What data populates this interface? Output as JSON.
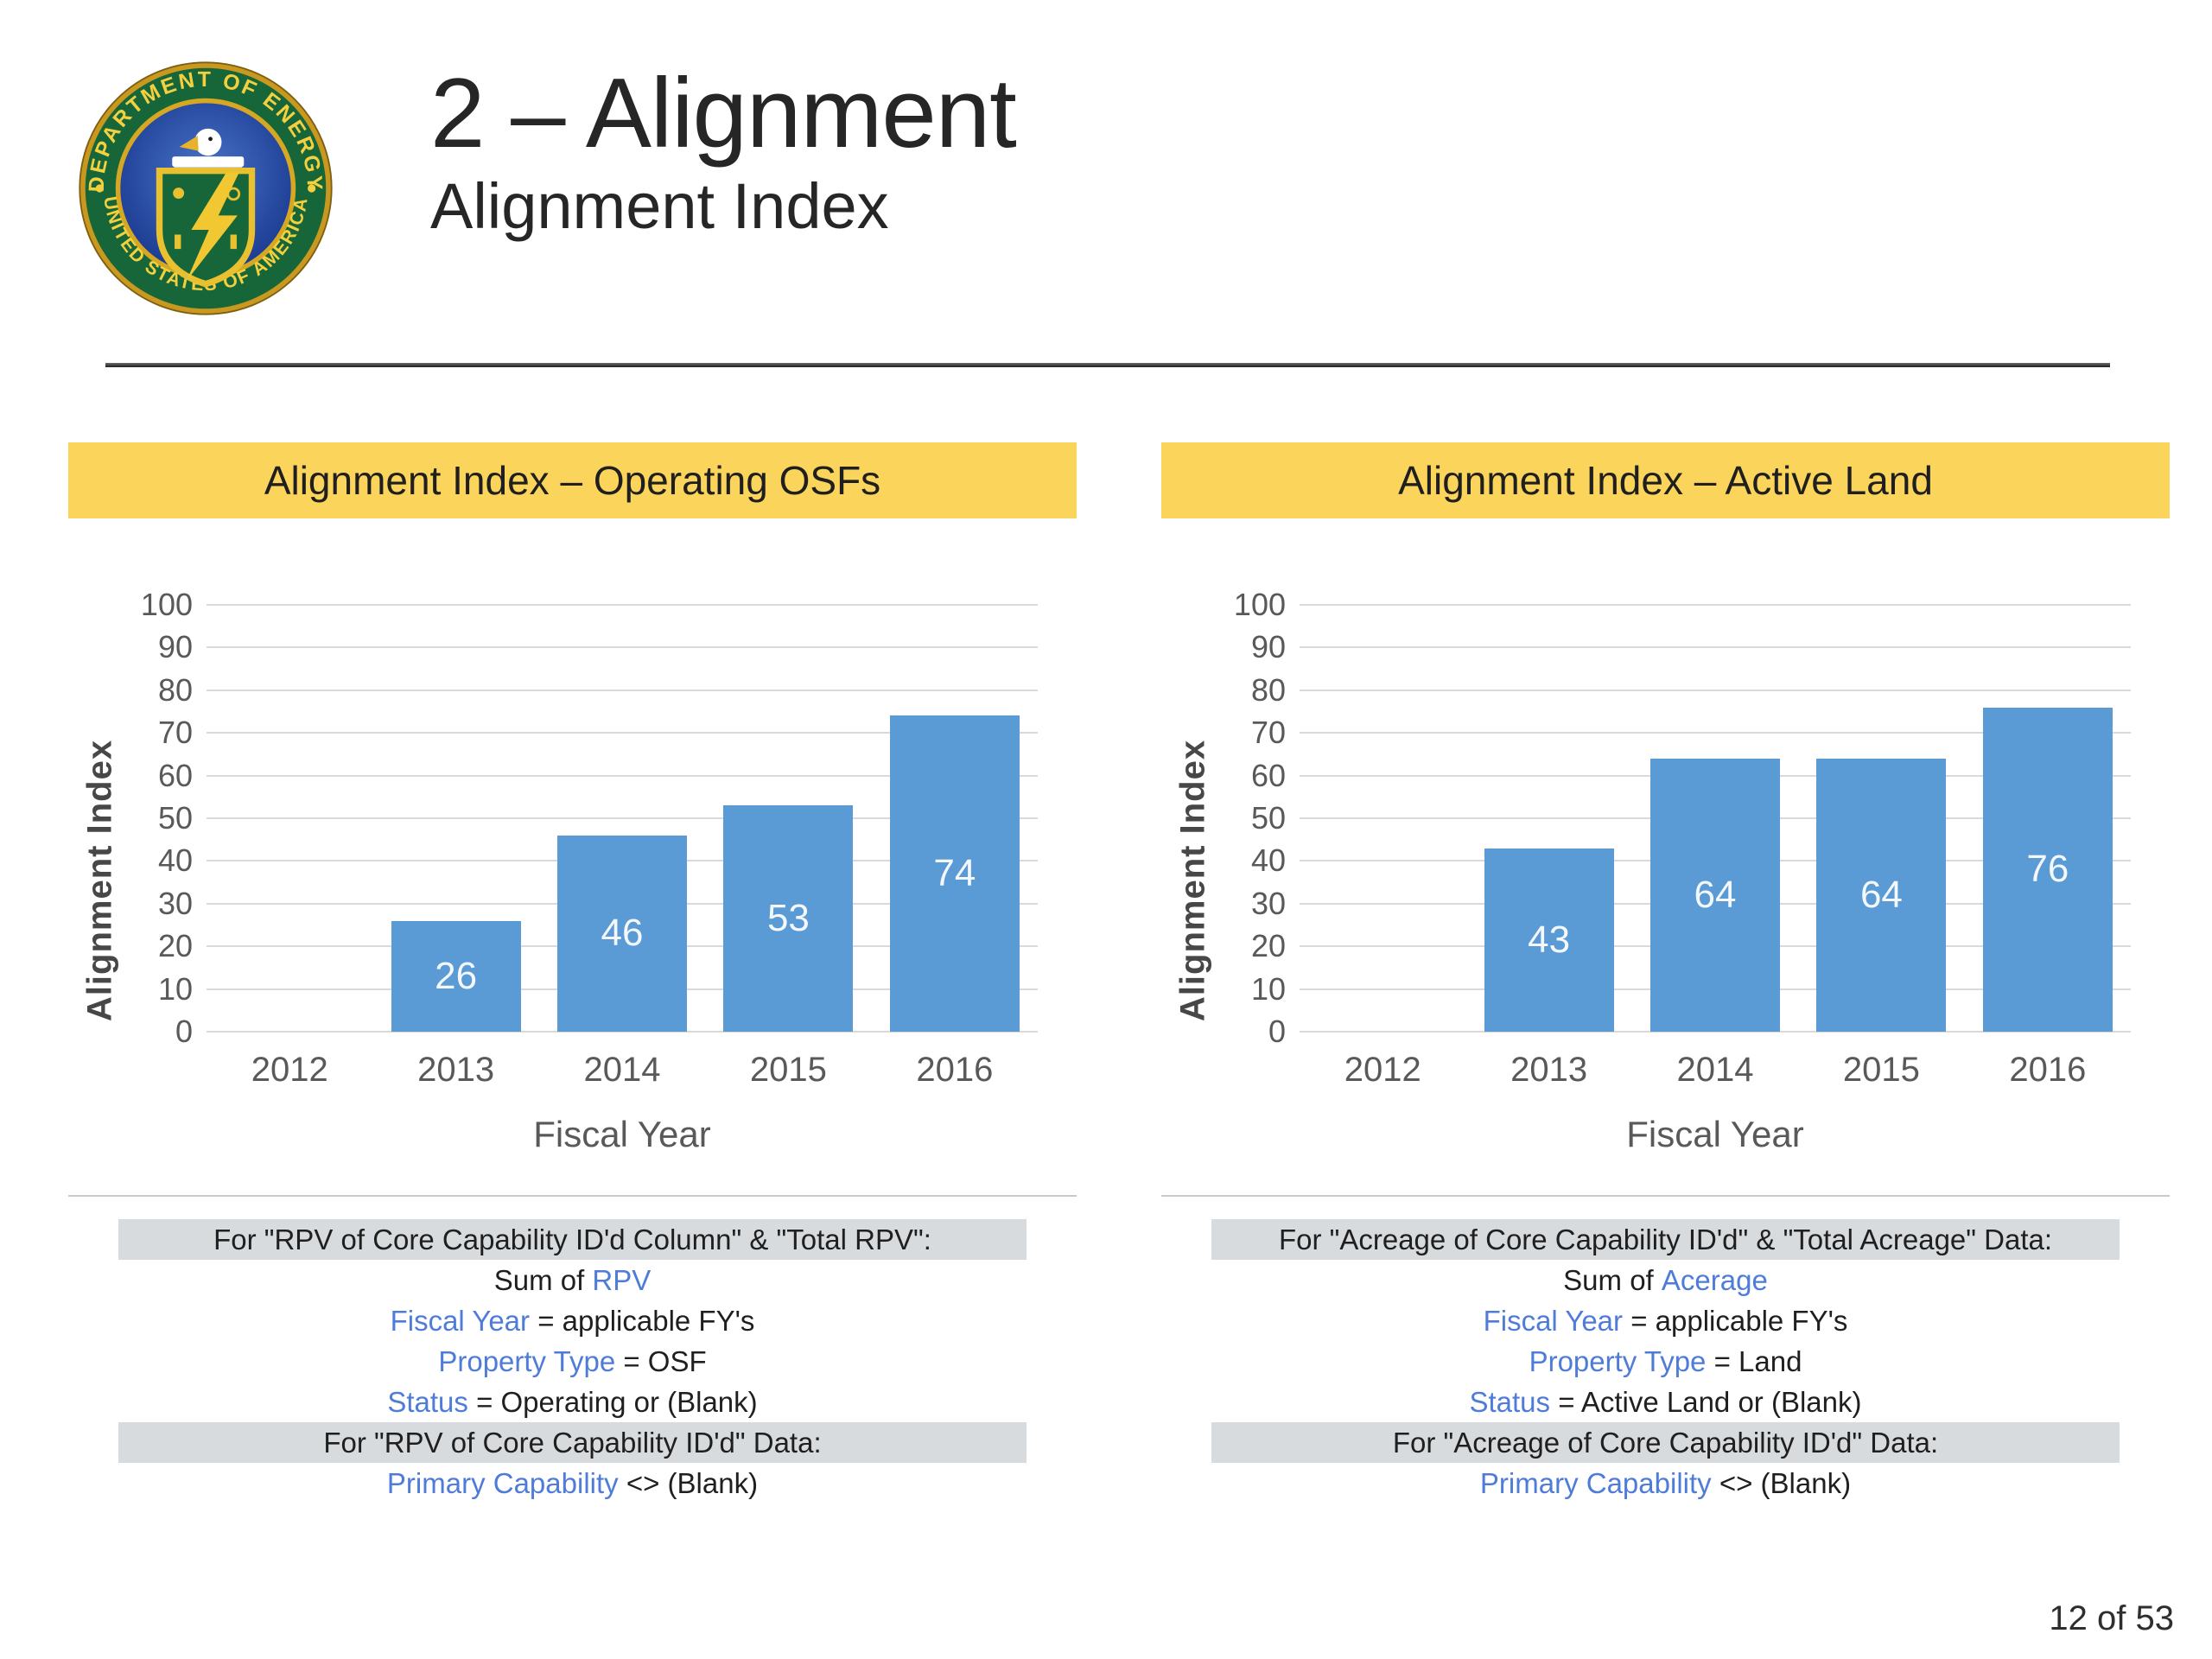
{
  "slide": {
    "title": "2 – Alignment",
    "subtitle": "Alignment Index",
    "page_number": "12 of 53"
  },
  "logo": {
    "name": "us-department-of-energy-seal",
    "ring_top": "DEPARTMENT OF ENERGY",
    "ring_bottom": "UNITED STATES OF AMERICA"
  },
  "colors": {
    "banner_bg": "#FBD45C",
    "bar_fill": "#5B9BD5",
    "bar_label": "#F4F8FC",
    "note_highlight_bg": "#D8DBDD",
    "blue_text": "#4F7CD9",
    "gridline": "#D9D9D9",
    "axis_text": "#595959"
  },
  "panels": [
    {
      "banner": "Alignment Index – Operating OSFs",
      "notes": [
        {
          "highlight": true,
          "segments": [
            {
              "text": "For \"RPV of Core Capability ID'd Column\" & \"Total RPV\":"
            }
          ]
        },
        {
          "segments": [
            {
              "text": "Sum of "
            },
            {
              "text": "RPV",
              "blue": true
            }
          ]
        },
        {
          "segments": [
            {
              "text": "Fiscal Year",
              "blue": true
            },
            {
              "text": " = applicable FY's"
            }
          ]
        },
        {
          "segments": [
            {
              "text": "Property Type",
              "blue": true
            },
            {
              "text": " = OSF"
            }
          ]
        },
        {
          "segments": [
            {
              "text": "Status",
              "blue": true
            },
            {
              "text": " = Operating or (Blank)"
            }
          ]
        },
        {
          "highlight": true,
          "segments": [
            {
              "text": "For \"RPV of Core Capability ID'd\" Data:"
            }
          ]
        },
        {
          "segments": [
            {
              "text": "Primary Capability",
              "blue": true
            },
            {
              "text": " <> (Blank)"
            }
          ]
        }
      ]
    },
    {
      "banner": "Alignment Index – Active Land",
      "notes": [
        {
          "highlight": true,
          "segments": [
            {
              "text": "For \"Acreage of Core Capability ID'd\" & \"Total Acreage\" Data:"
            }
          ]
        },
        {
          "segments": [
            {
              "text": "Sum of "
            },
            {
              "text": "Acerage",
              "blue": true
            }
          ]
        },
        {
          "segments": [
            {
              "text": "Fiscal Year",
              "blue": true
            },
            {
              "text": " = applicable FY's"
            }
          ]
        },
        {
          "segments": [
            {
              "text": "Property Type",
              "blue": true
            },
            {
              "text": " = Land"
            }
          ]
        },
        {
          "segments": [
            {
              "text": "Status",
              "blue": true
            },
            {
              "text": " = Active Land or (Blank)"
            }
          ]
        },
        {
          "highlight": true,
          "segments": [
            {
              "text": "For \"Acreage of Core Capability ID'd\" Data:"
            }
          ]
        },
        {
          "segments": [
            {
              "text": "Primary Capability",
              "blue": true
            },
            {
              "text": " <> (Blank)"
            }
          ]
        }
      ]
    }
  ],
  "chart_data": [
    {
      "type": "bar",
      "title": "Alignment Index – Operating OSFs",
      "categories": [
        "2012",
        "2013",
        "2014",
        "2015",
        "2016"
      ],
      "values": [
        null,
        26,
        46,
        53,
        74
      ],
      "xlabel": "Fiscal Year",
      "ylabel": "Alignment Index",
      "ylim": [
        0,
        100
      ],
      "ytick_step": 10,
      "grid": true,
      "legend": "none",
      "bar_color": "#5B9BD5",
      "data_labels": "center-inside-white"
    },
    {
      "type": "bar",
      "title": "Alignment Index – Active Land",
      "categories": [
        "2012",
        "2013",
        "2014",
        "2015",
        "2016"
      ],
      "values": [
        null,
        43,
        64,
        64,
        76
      ],
      "xlabel": "Fiscal Year",
      "ylabel": "Alignment Index",
      "ylim": [
        0,
        100
      ],
      "ytick_step": 10,
      "grid": true,
      "legend": "none",
      "bar_color": "#5B9BD5",
      "data_labels": "center-inside-white"
    }
  ]
}
